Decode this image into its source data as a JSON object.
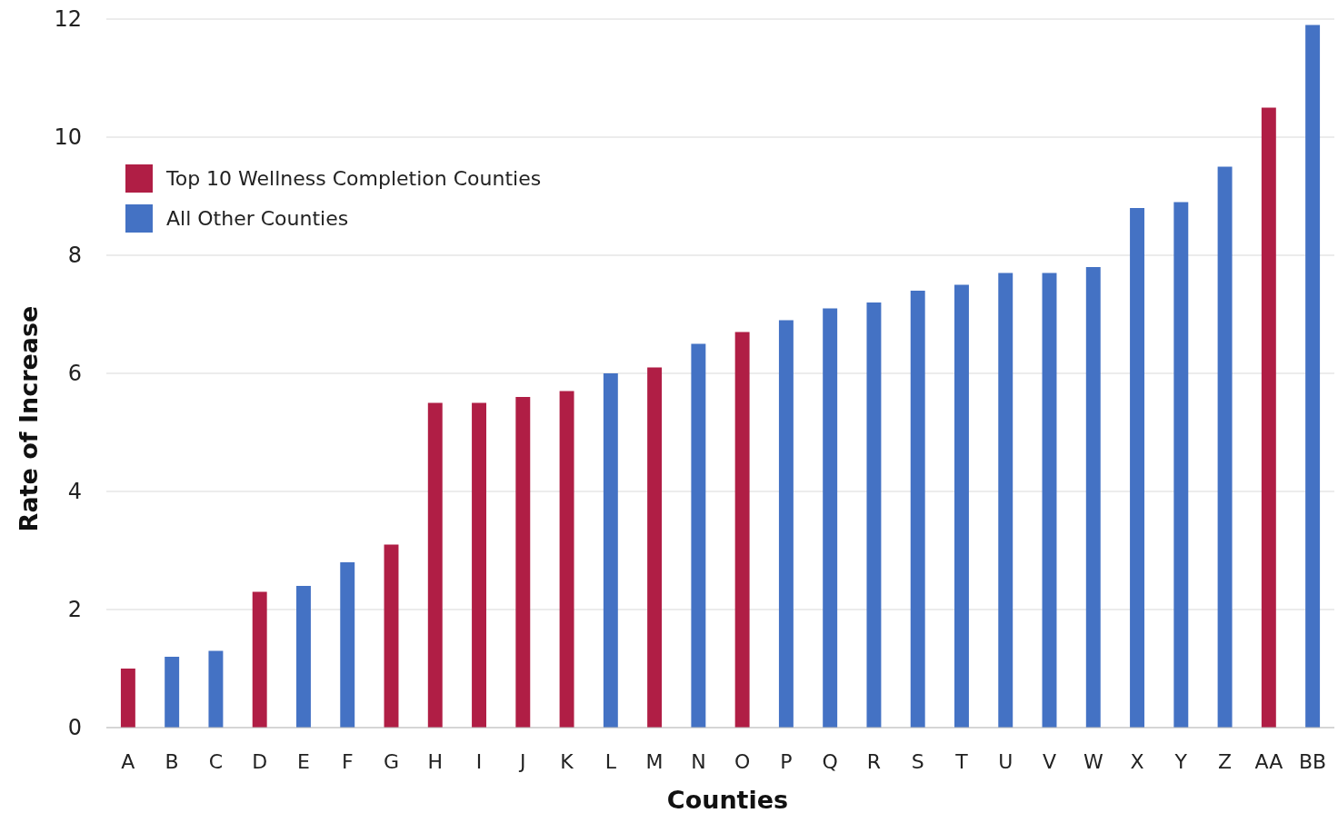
{
  "chart_data": {
    "type": "bar",
    "xlabel": "Counties",
    "ylabel": "Rate of Increase",
    "categories": [
      "A",
      "B",
      "C",
      "D",
      "E",
      "F",
      "G",
      "H",
      "I",
      "J",
      "K",
      "L",
      "M",
      "N",
      "O",
      "P",
      "Q",
      "R",
      "S",
      "T",
      "U",
      "V",
      "W",
      "X",
      "Y",
      "Z",
      "AA",
      "BB"
    ],
    "series": [
      {
        "name": "Top 10 Wellness Completion Counties",
        "color": "#b01e45",
        "values": [
          1.0,
          null,
          null,
          2.3,
          null,
          null,
          3.1,
          5.5,
          5.5,
          5.6,
          5.7,
          null,
          6.1,
          null,
          6.7,
          null,
          null,
          null,
          null,
          null,
          null,
          null,
          null,
          null,
          null,
          null,
          10.5,
          null
        ]
      },
      {
        "name": "All Other Counties",
        "color": "#4472c4",
        "values": [
          null,
          1.2,
          1.3,
          null,
          2.4,
          2.8,
          null,
          null,
          null,
          null,
          null,
          6.0,
          null,
          6.5,
          null,
          6.9,
          7.1,
          7.2,
          7.4,
          7.5,
          7.7,
          7.7,
          7.8,
          8.8,
          8.9,
          9.5,
          null,
          11.9
        ]
      }
    ],
    "ylim": [
      0,
      12
    ],
    "yticks": [
      0,
      2,
      4,
      6,
      8,
      10,
      12
    ],
    "grid": "y",
    "legend": "top left"
  }
}
